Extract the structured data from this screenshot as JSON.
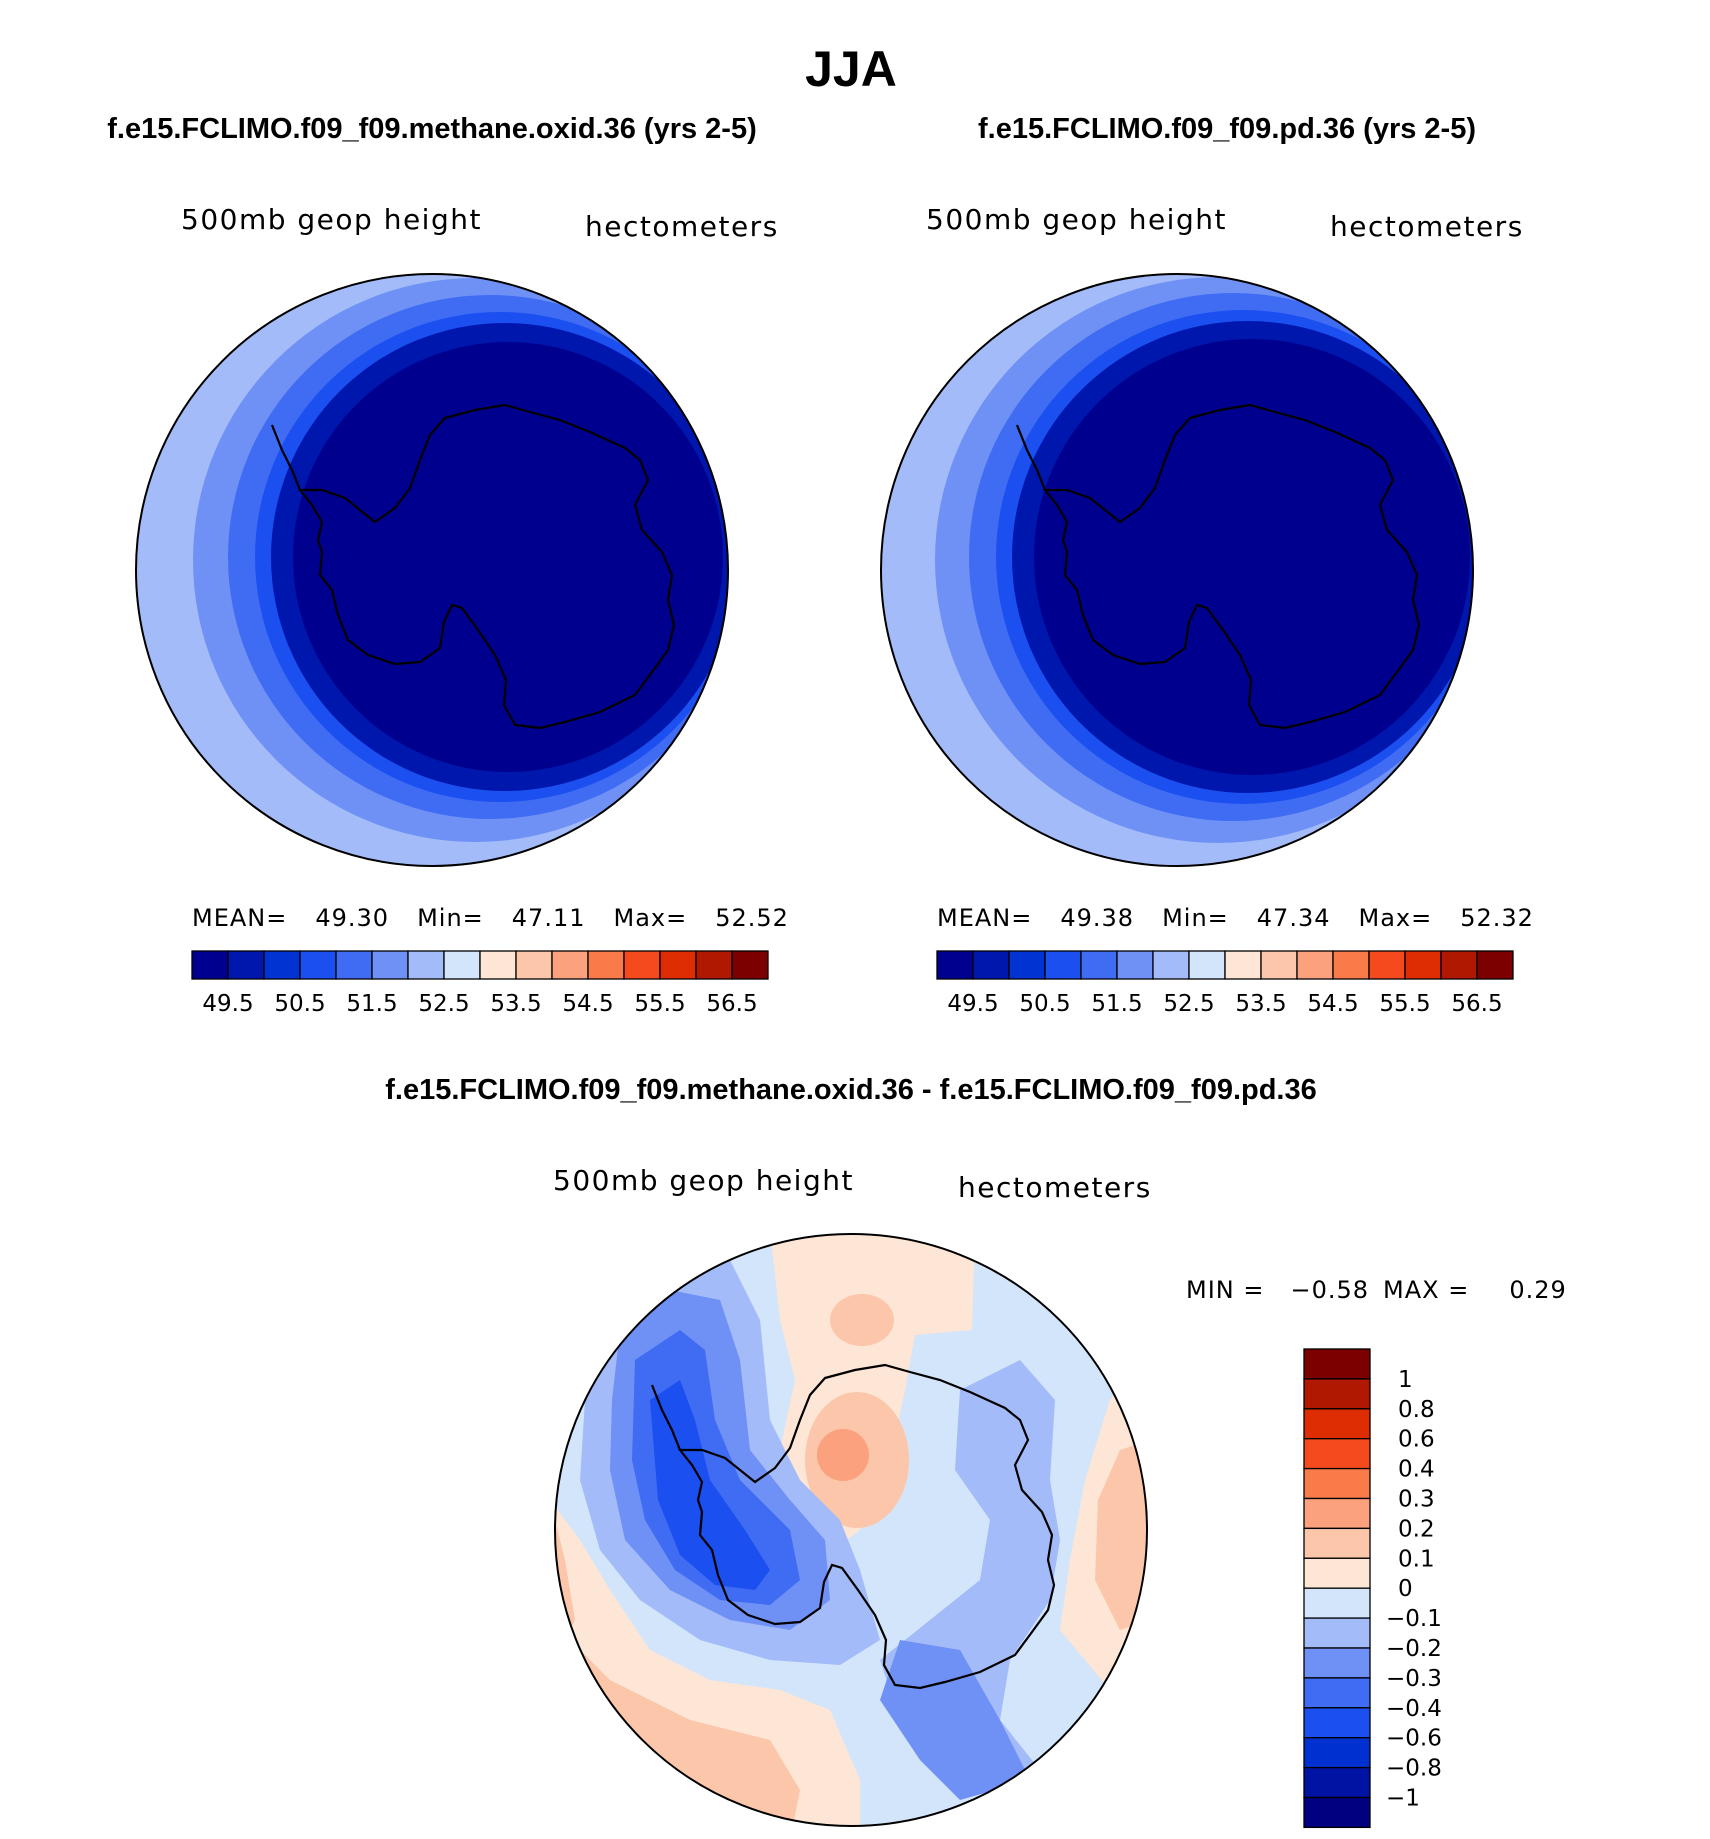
{
  "title": "JJA",
  "colors": {
    "ramp": [
      "#00008f",
      "#0017ad",
      "#0033d1",
      "#1c4ff0",
      "#3f6cf2",
      "#6f91f5",
      "#a3bbf8",
      "#d3e5fb",
      "#fde6d5",
      "#fcc6aa",
      "#fba17d",
      "#fa7b4a",
      "#f5491e",
      "#de2c03",
      "#b11802",
      "#7c0000"
    ],
    "diff": [
      "#000080",
      "#0013a3",
      "#0030d0",
      "#1c4ff0",
      "#3f6cf2",
      "#6f91f5",
      "#a3bbf8",
      "#d3e5fb",
      "#fde6d5",
      "#fcc6aa",
      "#fba17d",
      "#fa7b4a",
      "#f5491e",
      "#de2c03",
      "#b11802",
      "#7c0000"
    ]
  },
  "chart_data": [
    {
      "type": "heatmap",
      "projection": "south-polar-stereographic",
      "case": "f.e15.FCLIMO.f09_f09.methane.oxid.36 (yrs 2-5)",
      "variable": "500mb geop height",
      "units": "hectometers",
      "stats": {
        "mean_label": "MEAN=",
        "mean": "49.30",
        "min_label": "Min=",
        "min": "47.11",
        "max_label": "Max=",
        "max": "52.52"
      },
      "contour_levels": [
        49,
        49.5,
        50,
        50.5,
        51,
        51.5,
        52,
        52.5,
        53,
        53.5,
        54,
        54.5,
        55,
        55.5,
        56,
        56.5
      ],
      "colorbar_labels": [
        "49.5",
        "50.5",
        "51.5",
        "52.5",
        "53.5",
        "54.5",
        "55.5",
        "56.5"
      ]
    },
    {
      "type": "heatmap",
      "projection": "south-polar-stereographic",
      "case": "f.e15.FCLIMO.f09_f09.pd.36 (yrs 2-5)",
      "variable": "500mb geop height",
      "units": "hectometers",
      "stats": {
        "mean_label": "MEAN=",
        "mean": "49.38",
        "min_label": "Min=",
        "min": "47.34",
        "max_label": "Max=",
        "max": "52.32"
      },
      "contour_levels": [
        49,
        49.5,
        50,
        50.5,
        51,
        51.5,
        52,
        52.5,
        53,
        53.5,
        54,
        54.5,
        55,
        55.5,
        56,
        56.5
      ],
      "colorbar_labels": [
        "49.5",
        "50.5",
        "51.5",
        "52.5",
        "53.5",
        "54.5",
        "55.5",
        "56.5"
      ]
    },
    {
      "type": "heatmap",
      "projection": "south-polar-stereographic",
      "case": "f.e15.FCLIMO.f09_f09.methane.oxid.36 - f.e15.FCLIMO.f09_f09.pd.36",
      "variable": "500mb geop height",
      "units": "hectometers",
      "stats": {
        "min_label": "MIN =",
        "min": "−0.58",
        "max_label": "MAX =",
        "max": "0.29"
      },
      "contour_levels": [
        -1,
        -0.8,
        -0.6,
        -0.4,
        -0.3,
        -0.2,
        -0.1,
        0,
        0.1,
        0.2,
        0.3,
        0.4,
        0.6,
        0.8,
        1
      ],
      "colorbar_labels": [
        "1",
        "0.8",
        "0.6",
        "0.4",
        "0.3",
        "0.2",
        "0.1",
        "0",
        "−0.1",
        "−0.2",
        "−0.3",
        "−0.4",
        "−0.6",
        "−0.8",
        "−1"
      ]
    }
  ]
}
